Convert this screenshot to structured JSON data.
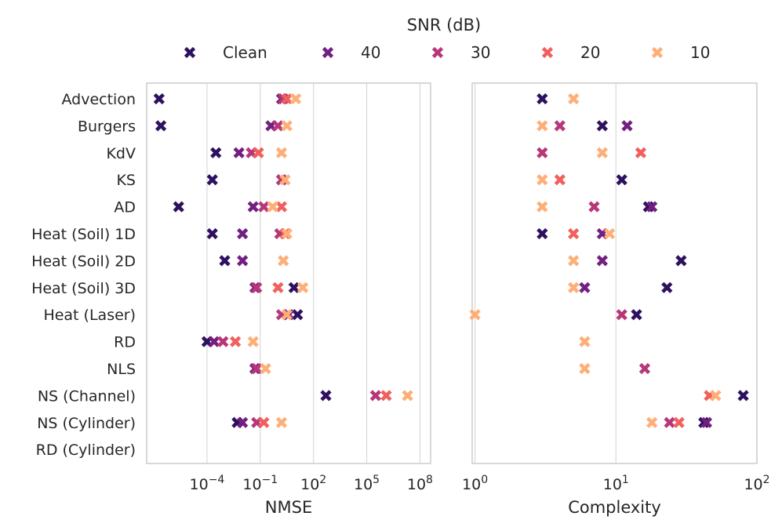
{
  "chart_data": {
    "type": "scatter",
    "legend": {
      "title": "SNR (dB)",
      "placement": "top-center",
      "entries": [
        {
          "name": "Clean",
          "color": "#2d1160"
        },
        {
          "name": "40",
          "color": "#721f81"
        },
        {
          "name": "30",
          "color": "#b73779"
        },
        {
          "name": "20",
          "color": "#f1605d"
        },
        {
          "name": "10",
          "color": "#feaf77"
        }
      ]
    },
    "categories": [
      "Advection",
      "Burgers",
      "KdV",
      "KS",
      "AD",
      "Heat (Soil) 1D",
      "Heat (Soil) 2D",
      "Heat (Soil) 3D",
      "Heat (Laser)",
      "RD",
      "NLS",
      "NS (Channel)",
      "NS (Cylinder)",
      "RD (Cylinder)"
    ],
    "panels": [
      {
        "xlabel": "NMSE",
        "xscale": "log",
        "xlim_exp": [
          -7.4,
          8.6
        ],
        "xticks": [
          {
            "exp": -4,
            "label": "10",
            "sup": "−4"
          },
          {
            "exp": -1,
            "label": "10",
            "sup": "−1"
          },
          {
            "exp": 2,
            "label": "10",
            "sup": "2"
          },
          {
            "exp": 5,
            "label": "10",
            "sup": "5"
          },
          {
            "exp": 8,
            "label": "10",
            "sup": "8"
          }
        ],
        "series": [
          {
            "name": "Clean",
            "log10_values": [
              -6.7,
              -6.6,
              -3.5,
              -3.7,
              -5.6,
              -3.7,
              -3.0,
              0.9,
              1.1,
              -4.0,
              null,
              2.7,
              -2.3,
              null
            ]
          },
          {
            "name": "40",
            "log10_values": [
              0.2,
              -0.4,
              -2.2,
              0.2,
              -1.4,
              -2.0,
              -2.0,
              -1.3,
              0.6,
              -3.6,
              -1.3,
              null,
              -2.0,
              null
            ]
          },
          {
            "name": "30",
            "log10_values": [
              0.3,
              0.0,
              -1.5,
              0.2,
              -0.8,
              0.1,
              null,
              -1.2,
              0.2,
              -3.1,
              -1.2,
              5.5,
              -1.2,
              null
            ]
          },
          {
            "name": "20",
            "log10_values": [
              0.5,
              null,
              -1.1,
              null,
              0.2,
              0.4,
              null,
              0.0,
              null,
              -2.4,
              null,
              6.1,
              -0.8,
              null
            ]
          },
          {
            "name": "10",
            "log10_values": [
              1.0,
              0.5,
              0.2,
              0.4,
              -0.3,
              0.5,
              0.3,
              1.4,
              0.5,
              -1.4,
              -0.7,
              7.3,
              0.2,
              null
            ]
          }
        ]
      },
      {
        "xlabel": "Complexity",
        "xscale": "log",
        "xlim_exp": [
          -0.02,
          2.0
        ],
        "xticks": [
          {
            "exp": 0,
            "label": "10",
            "sup": "0"
          },
          {
            "exp": 1,
            "label": "10",
            "sup": "1"
          },
          {
            "exp": 2,
            "label": "10",
            "sup": "2"
          }
        ],
        "series": [
          {
            "name": "Clean",
            "values": [
              3,
              8,
              null,
              11,
              17,
              3,
              29,
              23,
              14,
              null,
              null,
              80,
              42,
              null
            ]
          },
          {
            "name": "40",
            "values": [
              null,
              12,
              null,
              null,
              18,
              8,
              8,
              6,
              null,
              null,
              null,
              null,
              44,
              null
            ]
          },
          {
            "name": "30",
            "values": [
              null,
              4,
              3,
              null,
              7,
              null,
              null,
              null,
              11,
              null,
              16,
              null,
              24,
              null
            ]
          },
          {
            "name": "20",
            "values": [
              null,
              null,
              15,
              4,
              null,
              5,
              null,
              null,
              null,
              null,
              null,
              46,
              28,
              null
            ]
          },
          {
            "name": "10",
            "values": [
              5,
              3,
              8,
              3,
              3,
              9,
              5,
              5,
              1,
              6,
              6,
              51,
              18,
              null
            ]
          }
        ]
      }
    ]
  }
}
